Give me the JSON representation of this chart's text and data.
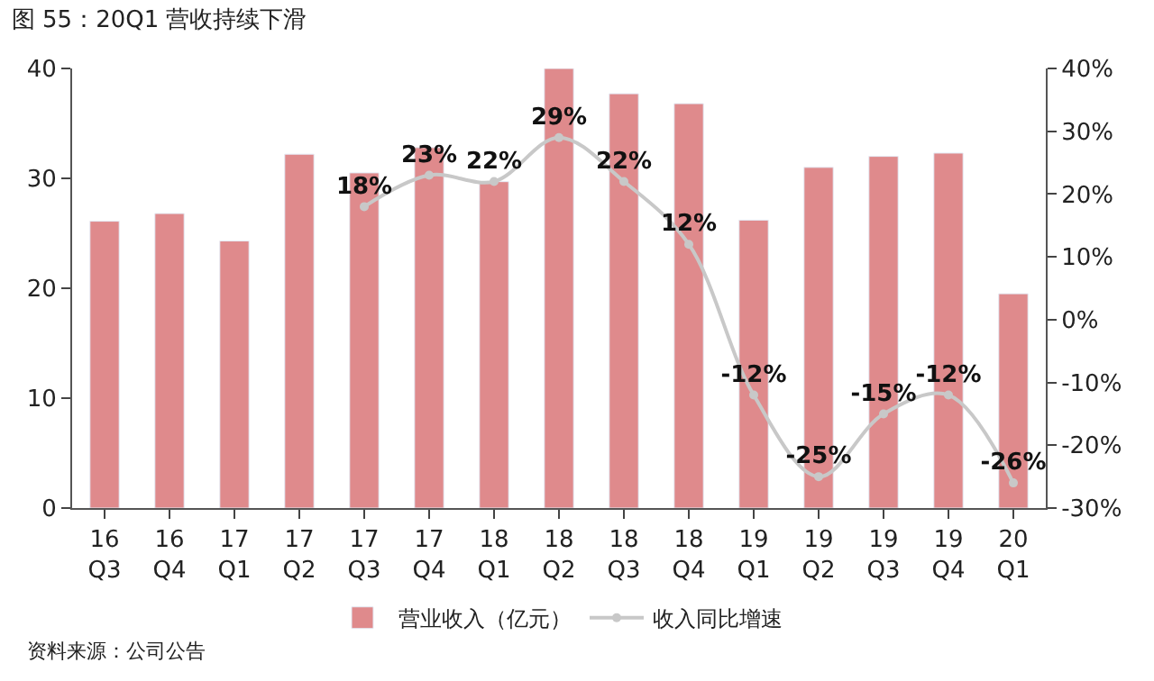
{
  "chart_data": {
    "type": "bar",
    "title": "图 55：20Q1 营收持续下滑",
    "categories": [
      "16\nQ3",
      "16\nQ4",
      "17\nQ1",
      "17\nQ2",
      "17\nQ3",
      "17\nQ4",
      "18\nQ1",
      "18\nQ2",
      "18\nQ3",
      "18\nQ4",
      "19\nQ1",
      "19\nQ2",
      "19\nQ3",
      "19\nQ4",
      "20\nQ1"
    ],
    "series": [
      {
        "name": "营业收入（亿元）",
        "color": "#df8a8c",
        "values": [
          26.1,
          26.8,
          24.3,
          32.2,
          30.5,
          32.8,
          29.7,
          40.0,
          37.7,
          36.8,
          26.2,
          31.0,
          32.0,
          32.3,
          19.5
        ]
      },
      {
        "name": "收入同比增速",
        "type": "line",
        "axis": "y2",
        "color": "#c8c8c8",
        "marker": "circle",
        "values": [
          null,
          null,
          null,
          null,
          18,
          23,
          22,
          29,
          22,
          12,
          -12,
          -25,
          -15,
          -12,
          -26
        ],
        "value_labels": [
          null,
          null,
          null,
          null,
          "18%",
          "23%",
          "22%",
          "29%",
          "22%",
          "12%",
          "-12%",
          "-25%",
          "-15%",
          "-12%",
          "-26%"
        ]
      }
    ],
    "ylim": [
      0,
      40
    ],
    "yticks": [
      0,
      10,
      20,
      30,
      40
    ],
    "y2lim": [
      -30,
      40
    ],
    "y2ticks": [
      {
        "value": -30,
        "label": "-30%"
      },
      {
        "value": -20,
        "label": "-20%"
      },
      {
        "value": -10,
        "label": "-10%"
      },
      {
        "value": 0,
        "label": "0%"
      },
      {
        "value": 10,
        "label": "10%"
      },
      {
        "value": 20,
        "label": "20%"
      },
      {
        "value": 30,
        "label": "30%"
      },
      {
        "value": 40,
        "label": "40%"
      }
    ],
    "legend": "bottom",
    "annotations": [
      "资料来源：公司公告"
    ]
  }
}
